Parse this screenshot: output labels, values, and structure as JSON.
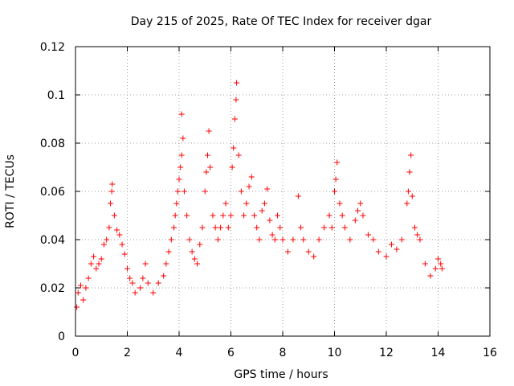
{
  "chart_data": {
    "type": "scatter",
    "title": "Day 215 of 2025, Rate Of TEC Index for receiver dgar",
    "xlabel": "GPS time / hours",
    "ylabel": "ROTI / TECUs",
    "xlim": [
      0,
      16
    ],
    "ylim": [
      0,
      0.12
    ],
    "x_ticks": [
      0,
      2,
      4,
      6,
      8,
      10,
      12,
      14,
      16
    ],
    "y_ticks": [
      0,
      0.02,
      0.04,
      0.06,
      0.08,
      0.1,
      0.12
    ],
    "x_tick_labels": [
      "0",
      "2",
      "4",
      "6",
      "8",
      "10",
      "12",
      "14",
      "16"
    ],
    "y_tick_labels": [
      "0",
      "0.02",
      "0.04",
      "0.06",
      "0.08",
      "0.1",
      "0.12"
    ],
    "grid": true,
    "marker": "+",
    "color": "#ff0000",
    "series": [
      {
        "name": "ROTI",
        "points": [
          [
            0.05,
            0.012
          ],
          [
            0.1,
            0.018
          ],
          [
            0.2,
            0.021
          ],
          [
            0.3,
            0.015
          ],
          [
            0.4,
            0.02
          ],
          [
            0.5,
            0.024
          ],
          [
            0.6,
            0.03
          ],
          [
            0.7,
            0.033
          ],
          [
            0.8,
            0.028
          ],
          [
            0.9,
            0.03
          ],
          [
            1.0,
            0.032
          ],
          [
            1.1,
            0.038
          ],
          [
            1.2,
            0.04
          ],
          [
            1.3,
            0.045
          ],
          [
            1.35,
            0.055
          ],
          [
            1.4,
            0.06
          ],
          [
            1.42,
            0.063
          ],
          [
            1.5,
            0.05
          ],
          [
            1.6,
            0.044
          ],
          [
            1.7,
            0.042
          ],
          [
            1.8,
            0.038
          ],
          [
            1.9,
            0.034
          ],
          [
            2.0,
            0.028
          ],
          [
            2.1,
            0.024
          ],
          [
            2.2,
            0.022
          ],
          [
            2.3,
            0.018
          ],
          [
            2.5,
            0.02
          ],
          [
            2.6,
            0.024
          ],
          [
            2.7,
            0.03
          ],
          [
            2.8,
            0.022
          ],
          [
            3.0,
            0.018
          ],
          [
            3.2,
            0.022
          ],
          [
            3.4,
            0.025
          ],
          [
            3.5,
            0.03
          ],
          [
            3.6,
            0.035
          ],
          [
            3.7,
            0.04
          ],
          [
            3.8,
            0.045
          ],
          [
            3.85,
            0.05
          ],
          [
            3.9,
            0.055
          ],
          [
            3.95,
            0.06
          ],
          [
            4.0,
            0.065
          ],
          [
            4.05,
            0.07
          ],
          [
            4.1,
            0.075
          ],
          [
            4.15,
            0.082
          ],
          [
            4.1,
            0.092
          ],
          [
            4.2,
            0.06
          ],
          [
            4.3,
            0.05
          ],
          [
            4.4,
            0.04
          ],
          [
            4.5,
            0.035
          ],
          [
            4.6,
            0.032
          ],
          [
            4.7,
            0.03
          ],
          [
            4.8,
            0.038
          ],
          [
            4.9,
            0.045
          ],
          [
            5.0,
            0.06
          ],
          [
            5.05,
            0.068
          ],
          [
            5.1,
            0.075
          ],
          [
            5.15,
            0.085
          ],
          [
            5.2,
            0.07
          ],
          [
            5.3,
            0.05
          ],
          [
            5.4,
            0.045
          ],
          [
            5.5,
            0.04
          ],
          [
            5.6,
            0.045
          ],
          [
            5.7,
            0.05
          ],
          [
            5.8,
            0.055
          ],
          [
            5.9,
            0.045
          ],
          [
            6.0,
            0.05
          ],
          [
            6.05,
            0.07
          ],
          [
            6.1,
            0.078
          ],
          [
            6.15,
            0.09
          ],
          [
            6.2,
            0.098
          ],
          [
            6.22,
            0.105
          ],
          [
            6.3,
            0.075
          ],
          [
            6.4,
            0.06
          ],
          [
            6.5,
            0.05
          ],
          [
            6.6,
            0.055
          ],
          [
            6.7,
            0.062
          ],
          [
            6.8,
            0.066
          ],
          [
            6.9,
            0.05
          ],
          [
            7.0,
            0.045
          ],
          [
            7.1,
            0.04
          ],
          [
            7.2,
            0.052
          ],
          [
            7.3,
            0.055
          ],
          [
            7.4,
            0.061
          ],
          [
            7.5,
            0.048
          ],
          [
            7.6,
            0.042
          ],
          [
            7.7,
            0.04
          ],
          [
            7.8,
            0.05
          ],
          [
            7.9,
            0.045
          ],
          [
            8.0,
            0.04
          ],
          [
            8.2,
            0.035
          ],
          [
            8.4,
            0.04
          ],
          [
            8.6,
            0.058
          ],
          [
            8.7,
            0.045
          ],
          [
            8.8,
            0.04
          ],
          [
            9.0,
            0.035
          ],
          [
            9.2,
            0.033
          ],
          [
            9.4,
            0.04
          ],
          [
            9.6,
            0.045
          ],
          [
            9.8,
            0.05
          ],
          [
            9.9,
            0.045
          ],
          [
            10.0,
            0.06
          ],
          [
            10.05,
            0.065
          ],
          [
            10.1,
            0.072
          ],
          [
            10.2,
            0.055
          ],
          [
            10.3,
            0.05
          ],
          [
            10.4,
            0.045
          ],
          [
            10.6,
            0.04
          ],
          [
            10.8,
            0.048
          ],
          [
            10.9,
            0.052
          ],
          [
            11.0,
            0.055
          ],
          [
            11.1,
            0.05
          ],
          [
            11.3,
            0.042
          ],
          [
            11.5,
            0.04
          ],
          [
            11.7,
            0.035
          ],
          [
            12.0,
            0.033
          ],
          [
            12.2,
            0.038
          ],
          [
            12.4,
            0.036
          ],
          [
            12.6,
            0.04
          ],
          [
            12.8,
            0.055
          ],
          [
            12.85,
            0.06
          ],
          [
            12.9,
            0.068
          ],
          [
            12.95,
            0.075
          ],
          [
            13.0,
            0.058
          ],
          [
            13.1,
            0.045
          ],
          [
            13.2,
            0.042
          ],
          [
            13.3,
            0.04
          ],
          [
            13.5,
            0.03
          ],
          [
            13.7,
            0.025
          ],
          [
            13.9,
            0.028
          ],
          [
            14.0,
            0.032
          ],
          [
            14.1,
            0.03
          ],
          [
            14.15,
            0.028
          ]
        ]
      }
    ]
  }
}
